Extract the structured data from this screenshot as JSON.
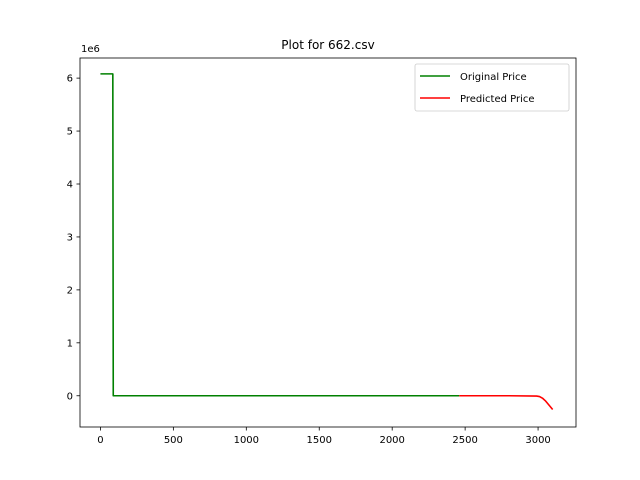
{
  "chart_data": {
    "type": "line",
    "title": "Plot for 662.csv",
    "xlabel": "",
    "ylabel": "",
    "y_offset_label": "1e6",
    "xlim": [
      -140,
      3260
    ],
    "ylim": [
      -590000,
      6380000
    ],
    "x_ticks": [
      0,
      500,
      1000,
      1500,
      2000,
      2500,
      3000
    ],
    "x_tick_labels": [
      "0",
      "500",
      "1000",
      "1500",
      "2000",
      "2500",
      "3000"
    ],
    "y_ticks": [
      0,
      1000000,
      2000000,
      3000000,
      4000000,
      5000000,
      6000000
    ],
    "y_tick_labels": [
      "0",
      "1",
      "2",
      "3",
      "4",
      "5",
      "6"
    ],
    "grid": false,
    "legend_position": "upper right",
    "series": [
      {
        "name": "Original Price",
        "color": "#008000",
        "points": [
          [
            0,
            6080000
          ],
          [
            85,
            6080000
          ],
          [
            88,
            0
          ],
          [
            2460,
            0
          ]
        ]
      },
      {
        "name": "Predicted Price",
        "color": "#ff0000",
        "points": [
          [
            2460,
            0
          ],
          [
            2800,
            0
          ],
          [
            2990,
            -5000
          ],
          [
            3010,
            -15000
          ],
          [
            3030,
            -45000
          ],
          [
            3050,
            -95000
          ],
          [
            3070,
            -160000
          ],
          [
            3100,
            -260000
          ]
        ]
      }
    ]
  }
}
